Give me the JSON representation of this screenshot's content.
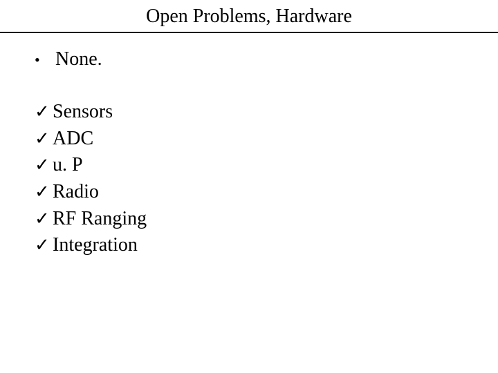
{
  "slide": {
    "title": "Open Problems, Hardware",
    "title_fontsize": 28,
    "title_color": "#000000",
    "divider_color": "#000000",
    "divider_width": 2,
    "background_color": "#ffffff",
    "font_family": "Times New Roman",
    "body_fontsize": 28,
    "bullets": [
      {
        "marker": "dot",
        "text": "None."
      }
    ],
    "checked_items": [
      {
        "marker": "check",
        "text": "Sensors"
      },
      {
        "marker": "check",
        "text": "ADC"
      },
      {
        "marker": "check",
        "text": "u. P"
      },
      {
        "marker": "check",
        "text": "Radio"
      },
      {
        "marker": "check",
        "text": "RF Ranging"
      },
      {
        "marker": "check",
        "text": "Integration"
      }
    ],
    "markers": {
      "dot": "•",
      "check": "✓"
    }
  }
}
